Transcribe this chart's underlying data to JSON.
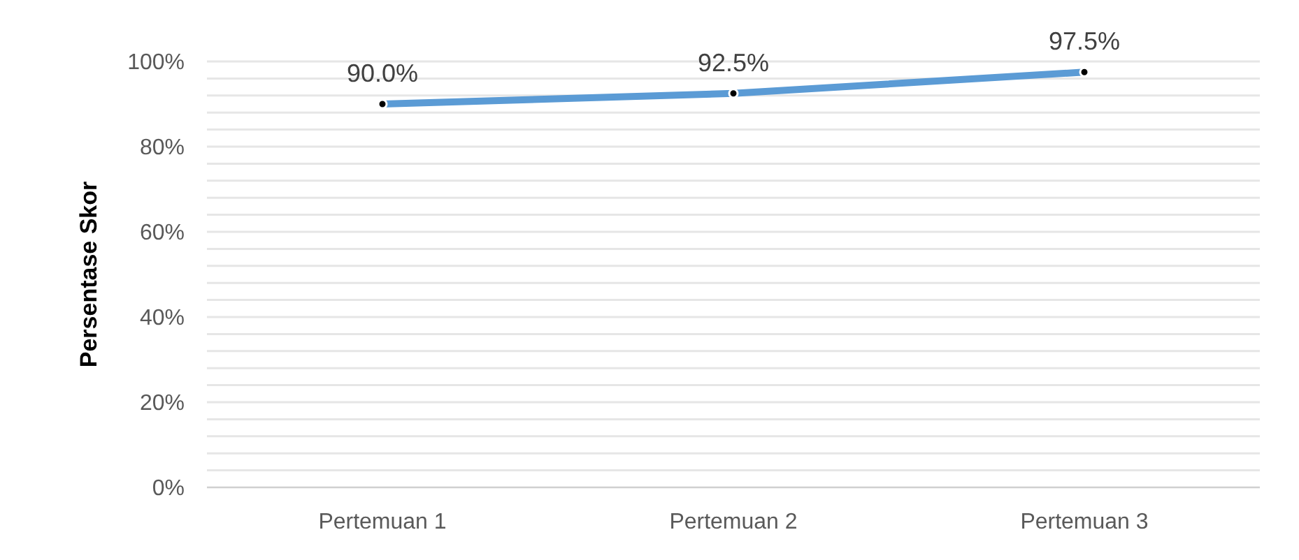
{
  "chart_data": {
    "type": "line",
    "ylabel": "Persentase Skor",
    "categories": [
      "Pertemuan 1",
      "Pertemuan 2",
      "Pertemuan 3"
    ],
    "series": [
      {
        "color": "#5b9bd5",
        "values": [
          90,
          92.5,
          97.5
        ],
        "value_labels": [
          "90.0%",
          "92.5%",
          "97.5%"
        ]
      }
    ],
    "ylim": [
      0,
      100
    ],
    "yticks": [
      {
        "value": 0,
        "label": "0%"
      },
      {
        "value": 4,
        "label": null
      },
      {
        "value": 8,
        "label": null
      },
      {
        "value": 12,
        "label": null
      },
      {
        "value": 16,
        "label": null
      },
      {
        "value": 20,
        "label": "20%"
      },
      {
        "value": 24,
        "label": null
      },
      {
        "value": 28,
        "label": null
      },
      {
        "value": 32,
        "label": null
      },
      {
        "value": 36,
        "label": null
      },
      {
        "value": 40,
        "label": "40%"
      },
      {
        "value": 44,
        "label": null
      },
      {
        "value": 48,
        "label": null
      },
      {
        "value": 52,
        "label": null
      },
      {
        "value": 56,
        "label": null
      },
      {
        "value": 60,
        "label": "60%"
      },
      {
        "value": 64,
        "label": null
      },
      {
        "value": 68,
        "label": null
      },
      {
        "value": 72,
        "label": null
      },
      {
        "value": 76,
        "label": null
      },
      {
        "value": 80,
        "label": "80%"
      },
      {
        "value": 84,
        "label": null
      },
      {
        "value": 88,
        "label": null
      },
      {
        "value": 92,
        "label": null
      },
      {
        "value": 96,
        "label": null
      },
      {
        "value": 100,
        "label": "100%"
      }
    ],
    "grid": "y",
    "marker": "circle",
    "line_style": "solid",
    "legend": false
  }
}
